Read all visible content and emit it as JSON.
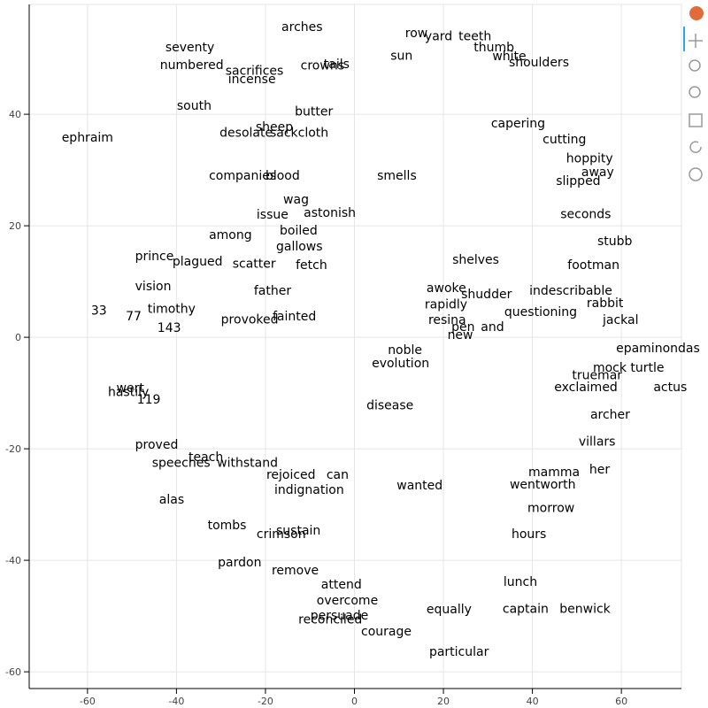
{
  "chart_data": {
    "type": "text_scatter",
    "xlim": [
      -73.1,
      73.5
    ],
    "ylim": [
      -63.0,
      59.7
    ],
    "xticks": [
      -60,
      -40,
      -20,
      0,
      20,
      40,
      60
    ],
    "yticks": [
      -60,
      -40,
      -20,
      0,
      20,
      40
    ],
    "grid": true,
    "color": "#000000",
    "labels": [
      "arches",
      "row",
      "yard",
      "teeth",
      "seventy",
      "thumb",
      "sun",
      "white",
      "shoulders",
      "numbered",
      "tails",
      "crowns",
      "incense",
      "south",
      "ephraim",
      "away",
      "slipped",
      "seconds",
      "boiled",
      "wag",
      "among",
      "stubb",
      "footman",
      "shelves",
      "prince",
      "scatter",
      "plagued",
      "vision",
      "timothy",
      "33",
      "77",
      "fainted",
      "rabbit",
      "indescribable",
      "questioning",
      "jackal",
      "pen",
      "and",
      "resina",
      "new",
      "noble",
      "epaminondas",
      "mock turtle",
      "truemar",
      "exclaimed",
      "actus",
      "hastily",
      "wert",
      "119",
      "archer",
      "disease",
      "teach",
      "proved",
      "speeches",
      "withstand",
      "mamma",
      "villars",
      "her",
      "rejoiced",
      "can",
      "wanted",
      "indignation",
      "alas",
      "wentworth",
      "morrow",
      "hours",
      "pardon",
      "remove",
      "reconciled",
      "captain",
      "benwick",
      "particular",
      "equally",
      "courage",
      "persuade",
      "sheep",
      "butter",
      "desolate",
      "companies",
      "blood",
      "smells",
      "evolution",
      "awoke",
      "shudder",
      "fetch",
      "sacrifices",
      "sackcloth",
      "cutting",
      "capering",
      "hoppity",
      "rapidly",
      "issue",
      "astonish",
      "gallows",
      "father",
      "overcome",
      "attend",
      "lunch",
      "tombs",
      "crimson",
      "sustain",
      "143",
      "provoked"
    ],
    "x": [
      -16.4,
      11.4,
      15.8,
      23.4,
      -42.5,
      26.8,
      8.1,
      31.0,
      34.7,
      -43.7,
      -6.9,
      -12.1,
      -28.4,
      -39.9,
      -65.8,
      51.0,
      45.3,
      46.3,
      -16.8,
      -16.0,
      -32.7,
      54.6,
      47.9,
      22.0,
      -49.3,
      -27.4,
      -40.9,
      -49.3,
      -46.5,
      -59.2,
      -51.4,
      -18.4,
      52.2,
      39.3,
      33.7,
      55.8,
      21.8,
      28.4,
      16.6,
      20.9,
      7.5,
      58.8,
      53.6,
      48.9,
      44.9,
      67.2,
      -55.4,
      -53.5,
      -48.9,
      53.0,
      2.7,
      -37.3,
      -49.3,
      -45.5,
      -30.9,
      39.1,
      50.4,
      52.8,
      -19.8,
      -6.3,
      9.5,
      -18.0,
      -43.9,
      34.9,
      38.9,
      35.3,
      -30.7,
      -18.6,
      -12.6,
      33.3,
      46.1,
      16.8,
      16.2,
      1.5,
      -9.9,
      -22.2,
      -13.4,
      -30.3,
      -32.7,
      -20.0,
      5.1,
      3.9,
      16.2,
      24.0,
      -13.2,
      -29.0,
      -19.0,
      42.3,
      30.7,
      47.6,
      15.8,
      -22.0,
      -11.4,
      -17.6,
      -22.6,
      -8.5,
      -7.5,
      33.5,
      -33.0,
      -22.0,
      -17.6,
      -44.3,
      -30.0
    ],
    "y": [
      54.9,
      53.8,
      53.3,
      53.3,
      51.3,
      51.3,
      49.8,
      49.7,
      48.6,
      48.1,
      48.3,
      48.0,
      45.6,
      40.8,
      35.1,
      28.9,
      27.3,
      21.4,
      18.4,
      24.0,
      17.6,
      16.5,
      12.2,
      13.2,
      13.8,
      12.5,
      12.9,
      8.4,
      4.4,
      4.1,
      3.0,
      3.0,
      5.4,
      7.6,
      3.8,
      2.4,
      1.1,
      1.1,
      2.4,
      -0.3,
      -3.0,
      -2.7,
      -6.2,
      -7.5,
      -9.7,
      -9.7,
      -10.5,
      -9.8,
      -11.9,
      -14.6,
      -12.9,
      -22.2,
      -20.0,
      -23.2,
      -23.2,
      -24.9,
      -19.4,
      -24.4,
      -25.4,
      -25.4,
      -27.3,
      -28.1,
      -29.8,
      -27.1,
      -31.3,
      -36.0,
      -41.1,
      -42.5,
      -51.3,
      -49.4,
      -49.4,
      -57.1,
      -49.5,
      -53.5,
      -50.6,
      37.0,
      39.8,
      36.0,
      28.3,
      28.3,
      28.3,
      -5.4,
      8.1,
      7.0,
      12.2,
      47.1,
      36.0,
      34.8,
      37.6,
      31.4,
      5.2,
      21.3,
      21.6,
      15.6,
      7.6,
      -47.9,
      -45.1,
      -44.6,
      -34.4,
      -36.0,
      -35.4,
      1.0,
      2.5
    ]
  }
}
